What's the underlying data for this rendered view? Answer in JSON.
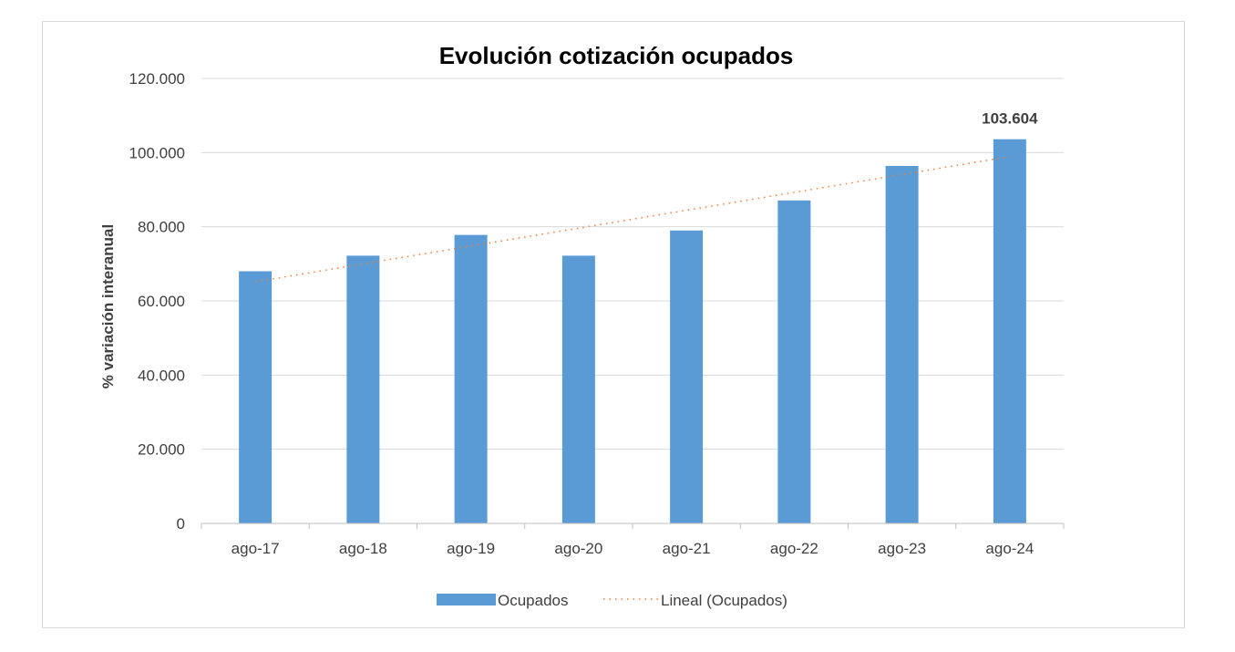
{
  "chart_data": {
    "type": "bar",
    "title": "Evolución cotización ocupados",
    "xlabel": "",
    "ylabel": "% variación interanual",
    "categories": [
      "ago-17",
      "ago-18",
      "ago-19",
      "ago-20",
      "ago-21",
      "ago-22",
      "ago-23",
      "ago-24"
    ],
    "series": [
      {
        "name": "Ocupados",
        "values": [
          68000,
          72200,
          77800,
          72200,
          79000,
          87100,
          96400,
          103604
        ],
        "color": "#5b9bd5"
      }
    ],
    "trendline": {
      "name": "Lineal (Ocupados)",
      "type": "linear",
      "style": "dotted",
      "color": "#ed7d31"
    },
    "data_labels": [
      {
        "index": 7,
        "text": "103.604"
      }
    ],
    "ylim": [
      0,
      120000
    ],
    "yticks": [
      0,
      20000,
      40000,
      60000,
      80000,
      100000,
      120000
    ],
    "ytick_labels": [
      "0",
      "20.000",
      "40.000",
      "60.000",
      "80.000",
      "100.000",
      "120.000"
    ],
    "grid": true,
    "legend_position": "bottom"
  }
}
